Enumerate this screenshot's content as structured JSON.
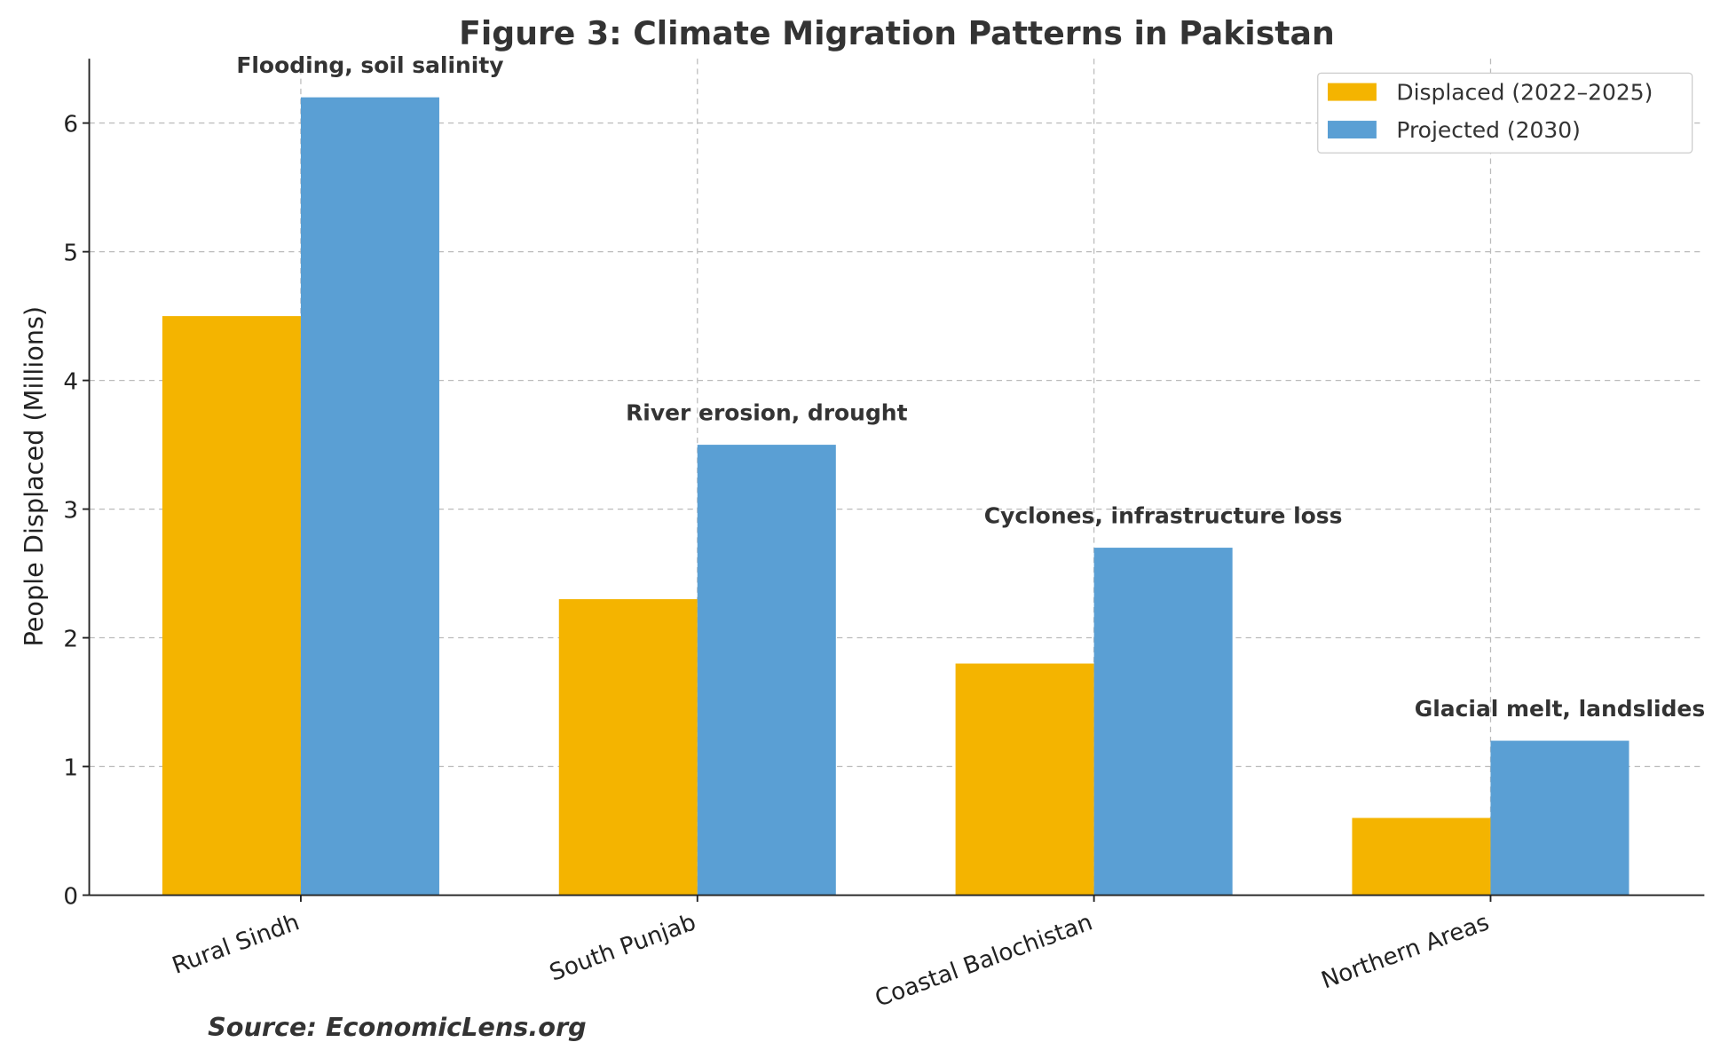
{
  "chart_data": {
    "type": "bar",
    "title": "Figure 3: Climate Migration Patterns in Pakistan",
    "xlabel": "",
    "ylabel": "People Displaced (Millions)",
    "ylim": [
      0,
      6.5
    ],
    "yticks": [
      0,
      1,
      2,
      3,
      4,
      5,
      6
    ],
    "grid": true,
    "legend_position": "top-right",
    "categories": [
      "Rural Sindh",
      "South Punjab",
      "Coastal Balochistan",
      "Northern Areas"
    ],
    "series": [
      {
        "name": "Displaced (2022–2025)",
        "color": "#F4B400",
        "values": [
          4.5,
          2.3,
          1.8,
          0.6
        ]
      },
      {
        "name": "Projected (2030)",
        "color": "#5A9FD4",
        "values": [
          6.2,
          3.5,
          2.7,
          1.2
        ]
      }
    ],
    "annotations": [
      "Flooding, soil salinity",
      "River erosion, drought",
      "Cyclones, infrastructure loss",
      "Glacial melt, landslides"
    ],
    "source": "Source: EconomicLens.org"
  }
}
